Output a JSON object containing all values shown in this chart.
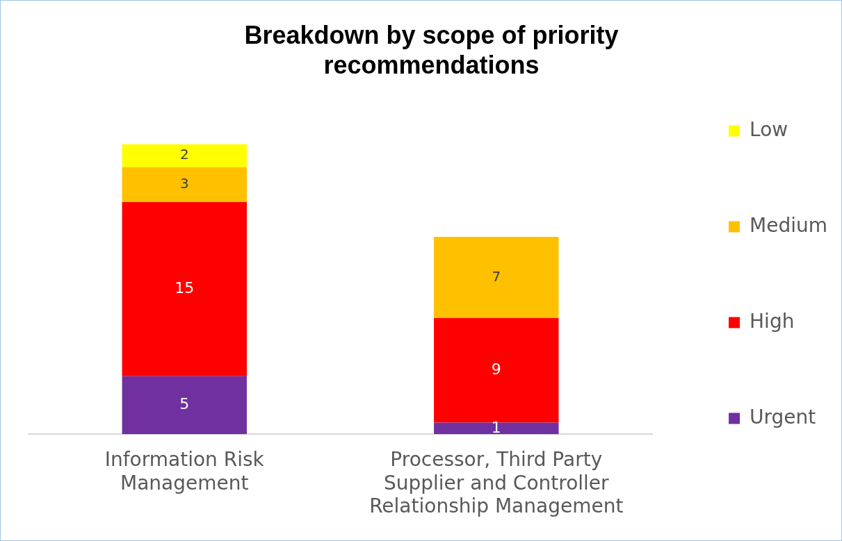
{
  "chart_data": {
    "type": "bar",
    "title": "Breakdown by scope of priority recommendations",
    "categories": [
      "Information Risk Management",
      "Processor, Third Party Supplier and Controller Relationship Management"
    ],
    "stacked": true,
    "data_labels": true,
    "grid": false,
    "legend": "right",
    "series": [
      {
        "name": "Urgent",
        "color": "#7030a0",
        "values": [
          5,
          1
        ]
      },
      {
        "name": "High",
        "color": "#ff0000",
        "values": [
          15,
          9
        ]
      },
      {
        "name": "Medium",
        "color": "#ffc000",
        "values": [
          3,
          7
        ]
      },
      {
        "name": "Low",
        "color": "#ffff00",
        "values": [
          2,
          null
        ]
      }
    ]
  }
}
